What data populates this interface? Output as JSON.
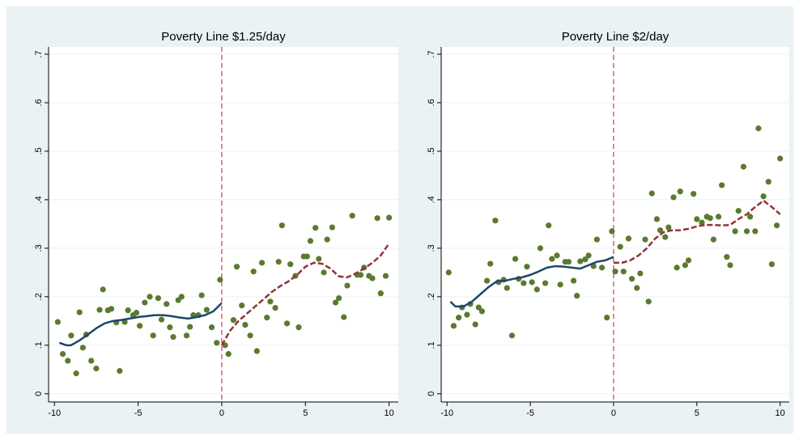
{
  "chart_data": [
    {
      "type": "scatter",
      "title": "Poverty Line $1.25/day",
      "xlim": [
        -10.35,
        10.55
      ],
      "ylim": [
        -0.017,
        0.715
      ],
      "xticks": [
        -10,
        -5,
        0,
        5,
        10
      ],
      "yticks": [
        {
          "value": 0,
          "label": "0"
        },
        {
          "value": 0.1,
          "label": ".1"
        },
        {
          "value": 0.2,
          "label": ".2"
        },
        {
          "value": 0.3,
          "label": ".3"
        },
        {
          "value": 0.4,
          "label": ".4"
        },
        {
          "value": 0.5,
          "label": ".5"
        },
        {
          "value": 0.6,
          "label": ".6"
        },
        {
          "value": 0.7,
          "label": ".7"
        }
      ],
      "grid": true,
      "vline": {
        "x": 0,
        "color": "#b5174b"
      },
      "series": [
        {
          "style": "markers",
          "color": "#5a7a2e",
          "x": [
            -9.8,
            -9.5,
            -9.2,
            -9.0,
            -8.7,
            -8.5,
            -8.3,
            -8.1,
            -7.8,
            -7.5,
            -7.3,
            -7.1,
            -6.8,
            -6.6,
            -6.3,
            -6.1,
            -5.8,
            -5.6,
            -5.3,
            -5.1,
            -4.9,
            -4.6,
            -4.3,
            -4.1,
            -3.8,
            -3.6,
            -3.3,
            -3.1,
            -2.9,
            -2.6,
            -2.4,
            -2.1,
            -1.9,
            -1.7,
            -1.4,
            -1.2,
            -0.9,
            -0.6,
            -0.3,
            -0.1,
            0.2,
            0.4,
            0.7,
            0.9,
            1.2,
            1.4,
            1.7,
            1.9,
            2.1,
            2.4,
            2.7,
            2.9,
            3.2,
            3.4,
            3.6,
            3.9,
            4.1,
            4.4,
            4.6,
            4.9,
            5.1,
            5.3,
            5.6,
            5.8,
            6.1,
            6.3,
            6.6,
            6.8,
            7.0,
            7.3,
            7.5,
            7.8,
            8.1,
            8.3,
            8.5,
            8.8,
            9.0,
            9.3,
            9.5,
            9.8,
            10.0
          ],
          "values": [
            0.148,
            0.082,
            0.068,
            0.12,
            0.042,
            0.168,
            0.095,
            0.122,
            0.068,
            0.052,
            0.173,
            0.215,
            0.172,
            0.175,
            0.147,
            0.047,
            0.148,
            0.172,
            0.162,
            0.167,
            0.14,
            0.188,
            0.2,
            0.12,
            0.197,
            0.153,
            0.185,
            0.137,
            0.117,
            0.193,
            0.2,
            0.12,
            0.138,
            0.162,
            0.162,
            0.203,
            0.173,
            0.137,
            0.105,
            0.235,
            0.1,
            0.082,
            0.152,
            0.262,
            0.182,
            0.142,
            0.12,
            0.252,
            0.088,
            0.27,
            0.157,
            0.19,
            0.177,
            0.272,
            0.347,
            0.145,
            0.267,
            0.243,
            0.137,
            0.283,
            0.283,
            0.315,
            0.342,
            0.278,
            0.25,
            0.318,
            0.343,
            0.188,
            0.197,
            0.158,
            0.223,
            0.367,
            0.245,
            0.245,
            0.26,
            0.243,
            0.238,
            0.362,
            0.207,
            0.243,
            0.363
          ]
        },
        {
          "style": "line",
          "color": "#1a476f",
          "x": [
            -9.7,
            -9.3,
            -9,
            -8.5,
            -8,
            -7.5,
            -7,
            -6.5,
            -6,
            -5.5,
            -5,
            -4.5,
            -4,
            -3.5,
            -3,
            -2.5,
            -2,
            -1.5,
            -1,
            -0.5,
            0
          ],
          "values": [
            0.105,
            0.1,
            0.1,
            0.11,
            0.122,
            0.135,
            0.145,
            0.15,
            0.152,
            0.155,
            0.158,
            0.16,
            0.162,
            0.162,
            0.16,
            0.157,
            0.155,
            0.158,
            0.162,
            0.17,
            0.187
          ]
        },
        {
          "style": "dashed",
          "color": "#90353b",
          "x": [
            0,
            0.5,
            1,
            1.5,
            2,
            2.5,
            3,
            3.5,
            4,
            4.5,
            5,
            5.5,
            6,
            6.5,
            7,
            7.5,
            8,
            8.5,
            9,
            9.5,
            10
          ],
          "values": [
            0.1,
            0.13,
            0.15,
            0.165,
            0.18,
            0.195,
            0.21,
            0.222,
            0.232,
            0.245,
            0.262,
            0.27,
            0.268,
            0.258,
            0.242,
            0.24,
            0.248,
            0.258,
            0.27,
            0.285,
            0.31
          ]
        }
      ]
    },
    {
      "type": "scatter",
      "title": "Poverty Line $2/day",
      "xlim": [
        -10.35,
        10.55
      ],
      "ylim": [
        -0.017,
        0.715
      ],
      "xticks": [
        -10,
        -5,
        0,
        5,
        10
      ],
      "yticks": [
        {
          "value": 0,
          "label": "0"
        },
        {
          "value": 0.1,
          "label": ".1"
        },
        {
          "value": 0.2,
          "label": ".2"
        },
        {
          "value": 0.3,
          "label": ".3"
        },
        {
          "value": 0.4,
          "label": ".4"
        },
        {
          "value": 0.5,
          "label": ".5"
        },
        {
          "value": 0.6,
          "label": ".6"
        },
        {
          "value": 0.7,
          "label": ".7"
        }
      ],
      "grid": true,
      "vline": {
        "x": 0,
        "color": "#b5174b"
      },
      "series": [
        {
          "style": "markers",
          "color": "#5a7a2e",
          "x": [
            -9.9,
            -9.6,
            -9.3,
            -9.1,
            -8.8,
            -8.6,
            -8.3,
            -8.1,
            -7.9,
            -7.6,
            -7.4,
            -7.1,
            -6.9,
            -6.6,
            -6.4,
            -6.1,
            -5.9,
            -5.7,
            -5.4,
            -5.2,
            -4.9,
            -4.6,
            -4.4,
            -4.1,
            -3.9,
            -3.7,
            -3.4,
            -3.2,
            -2.9,
            -2.7,
            -2.4,
            -2.2,
            -2.0,
            -1.7,
            -1.5,
            -1.2,
            -1.0,
            -0.7,
            -0.4,
            -0.1,
            0.1,
            0.4,
            0.6,
            0.9,
            1.1,
            1.4,
            1.6,
            1.9,
            2.1,
            2.3,
            2.6,
            2.8,
            3.1,
            3.3,
            3.6,
            3.8,
            4.0,
            4.3,
            4.5,
            4.8,
            5.0,
            5.3,
            5.6,
            5.8,
            6.0,
            6.3,
            6.5,
            6.8,
            7.0,
            7.3,
            7.5,
            7.8,
            8.0,
            8.2,
            8.5,
            8.7,
            9.0,
            9.3,
            9.5,
            9.8,
            10.0
          ],
          "values": [
            0.25,
            0.14,
            0.157,
            0.178,
            0.163,
            0.185,
            0.143,
            0.178,
            0.17,
            0.233,
            0.268,
            0.357,
            0.23,
            0.235,
            0.218,
            0.12,
            0.278,
            0.237,
            0.228,
            0.262,
            0.23,
            0.215,
            0.3,
            0.228,
            0.347,
            0.278,
            0.285,
            0.225,
            0.272,
            0.272,
            0.233,
            0.202,
            0.273,
            0.277,
            0.285,
            0.263,
            0.318,
            0.26,
            0.157,
            0.335,
            0.252,
            0.303,
            0.252,
            0.32,
            0.237,
            0.218,
            0.248,
            0.318,
            0.19,
            0.413,
            0.36,
            0.337,
            0.323,
            0.343,
            0.405,
            0.26,
            0.417,
            0.265,
            0.275,
            0.412,
            0.36,
            0.353,
            0.365,
            0.362,
            0.318,
            0.365,
            0.43,
            0.282,
            0.265,
            0.335,
            0.377,
            0.468,
            0.335,
            0.365,
            0.335,
            0.547,
            0.407,
            0.437,
            0.267,
            0.347,
            0.485
          ]
        },
        {
          "style": "line",
          "color": "#1a476f",
          "x": [
            -9.8,
            -9.5,
            -9,
            -8.5,
            -8,
            -7.5,
            -7,
            -6.5,
            -6,
            -5.5,
            -5,
            -4.5,
            -4,
            -3.5,
            -3,
            -2.5,
            -2,
            -1.5,
            -1,
            -0.5,
            0
          ],
          "values": [
            0.19,
            0.18,
            0.18,
            0.19,
            0.205,
            0.22,
            0.232,
            0.233,
            0.237,
            0.24,
            0.245,
            0.252,
            0.26,
            0.263,
            0.262,
            0.26,
            0.258,
            0.265,
            0.272,
            0.275,
            0.282
          ]
        },
        {
          "style": "dashed",
          "color": "#90353b",
          "x": [
            0,
            0.5,
            1,
            1.5,
            2,
            2.5,
            3,
            3.5,
            4,
            4.5,
            5,
            5.5,
            6,
            6.5,
            7,
            7.5,
            8,
            8.5,
            9,
            9.5,
            10
          ],
          "values": [
            0.27,
            0.27,
            0.275,
            0.285,
            0.3,
            0.32,
            0.333,
            0.337,
            0.337,
            0.34,
            0.345,
            0.348,
            0.348,
            0.347,
            0.348,
            0.36,
            0.37,
            0.385,
            0.398,
            0.385,
            0.37
          ]
        }
      ]
    }
  ]
}
